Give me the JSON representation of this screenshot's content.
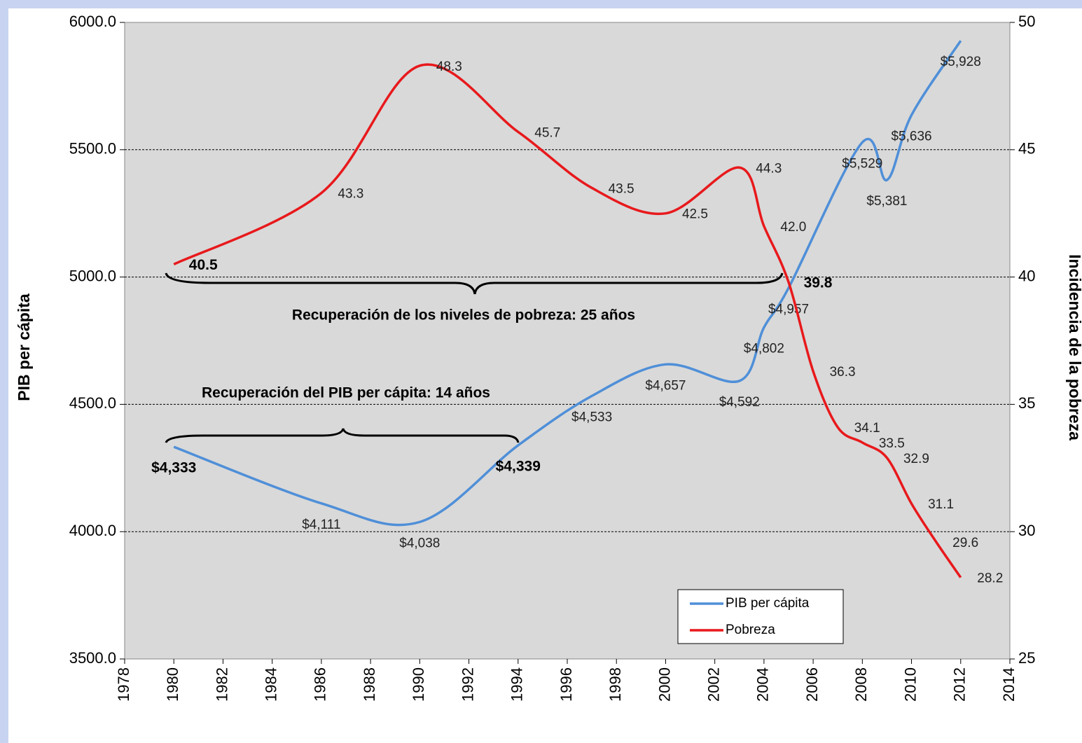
{
  "chart_data": {
    "type": "line",
    "x_pib": [
      1980,
      1986,
      1990,
      1994,
      1997,
      2000,
      2003,
      2004,
      2005,
      2008,
      2009,
      2010,
      2012
    ],
    "x_pobreza": [
      1980,
      1986,
      1990,
      1994,
      1997,
      2000,
      2003,
      2004,
      2005,
      2006,
      2007,
      2008,
      2009,
      2010,
      2011,
      2012
    ],
    "series": [
      {
        "name": "PIB per cápita",
        "color": "#4f8fd8",
        "axis": "y",
        "values": [
          4333,
          4111,
          4038,
          4339,
          4533,
          4657,
          4592,
          4802,
          4957,
          5529,
          5381,
          5636,
          5928
        ],
        "value_labels": [
          "$4,333",
          "$4,111",
          "$4,038",
          "$4,339",
          "$4,533",
          "$4,657",
          "$4,592",
          "$4,802",
          "$4,957",
          "$5,529",
          "$5,381",
          "$5,636",
          "$5,928"
        ]
      },
      {
        "name": "Pobreza",
        "color": "#e8191c",
        "axis": "y2",
        "values": [
          40.5,
          43.3,
          48.3,
          45.7,
          43.5,
          42.5,
          44.3,
          42.0,
          39.8,
          36.3,
          34.1,
          33.5,
          32.9,
          31.1,
          29.6,
          28.2
        ],
        "value_labels": [
          "40.5",
          "43.3",
          "48.3",
          "45.7",
          "43.5",
          "42.5",
          "44.3",
          "42.0",
          "39.8",
          "36.3",
          "34.1",
          "33.5",
          "32.9",
          "31.1",
          "29.6",
          "28.2"
        ]
      }
    ],
    "y_label": "PIB per cápita",
    "y2_label": "Incidencia de la pobreza",
    "annotations": [
      "Recuperación de los niveles de pobreza: 25 años",
      "Recuperación del PIB per cápita: 14 años"
    ],
    "xlim": [
      1978,
      2014
    ],
    "xticks": [
      1978,
      1980,
      1982,
      1984,
      1986,
      1988,
      1990,
      1992,
      1994,
      1996,
      1998,
      2000,
      2002,
      2004,
      2006,
      2008,
      2010,
      2012,
      2014
    ],
    "ylim": [
      3500,
      6000
    ],
    "yticks": [
      {
        "value": 3500,
        "label": "3500.0"
      },
      {
        "value": 4000,
        "label": "4000.0"
      },
      {
        "value": 4500,
        "label": "4500.0"
      },
      {
        "value": 5000,
        "label": "5000.0"
      },
      {
        "value": 5500,
        "label": "5500.0"
      },
      {
        "value": 6000,
        "label": "6000.0"
      }
    ],
    "y2lim": [
      25,
      50
    ],
    "y2ticks": [
      25,
      30,
      35,
      40,
      45,
      50
    ],
    "grid": true,
    "legend": "lower right"
  }
}
